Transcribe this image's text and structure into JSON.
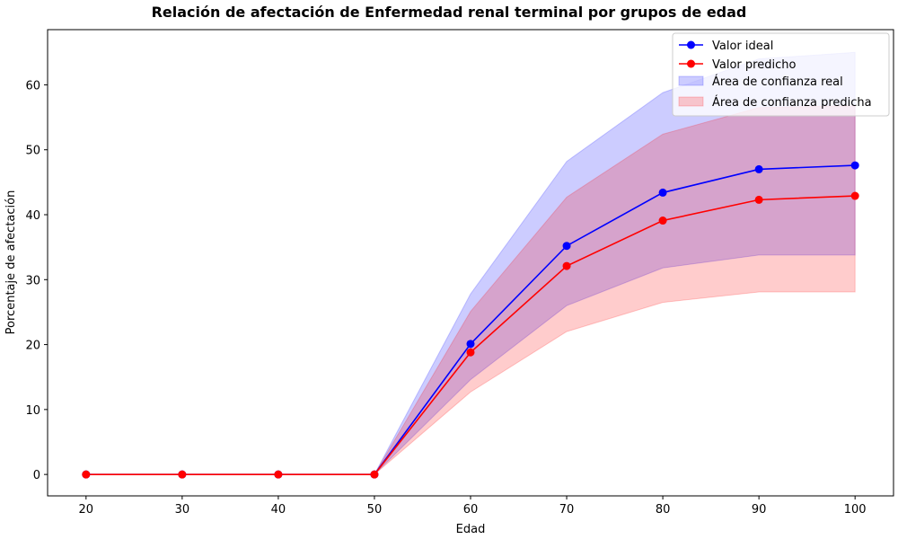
{
  "chart_data": {
    "type": "line",
    "title": "Relación de afectación de Enfermedad renal terminal por grupos de edad",
    "xlabel": "Edad",
    "ylabel": "Porcentaje de afectación",
    "x": [
      20,
      30,
      40,
      50,
      60,
      70,
      80,
      90,
      100
    ],
    "xlim": [
      16,
      104
    ],
    "ylim": [
      -3.3,
      68.5
    ],
    "xticks": [
      20,
      30,
      40,
      50,
      60,
      70,
      80,
      90,
      100
    ],
    "yticks": [
      0,
      10,
      20,
      30,
      40,
      50,
      60
    ],
    "grid": false,
    "legend_position": "top-right",
    "series": [
      {
        "name": "Valor ideal",
        "color": "#0000ff",
        "marker": "circle",
        "values": [
          0,
          0,
          0,
          0,
          20.1,
          35.2,
          43.4,
          47.0,
          47.6
        ]
      },
      {
        "name": "Valor predicho",
        "color": "#ff0000",
        "marker": "circle",
        "values": [
          0,
          0,
          0,
          0,
          18.8,
          32.1,
          39.1,
          42.3,
          42.9
        ]
      }
    ],
    "bands": [
      {
        "name": "Área de confianza real",
        "color": "#0000ff",
        "opacity": 0.2,
        "lower": [
          0,
          0,
          0,
          0,
          14.6,
          26.0,
          31.8,
          33.8,
          33.8
        ],
        "upper": [
          0,
          0,
          0,
          0,
          27.8,
          48.2,
          58.8,
          64.0,
          65.0
        ]
      },
      {
        "name": "Área de confianza predicha",
        "color": "#ff0000",
        "opacity": 0.2,
        "lower": [
          0,
          0,
          0,
          0,
          12.7,
          22.0,
          26.5,
          28.1,
          28.1
        ],
        "upper": [
          0,
          0,
          0,
          0,
          25.1,
          42.7,
          52.4,
          56.5,
          56.8
        ]
      }
    ]
  }
}
